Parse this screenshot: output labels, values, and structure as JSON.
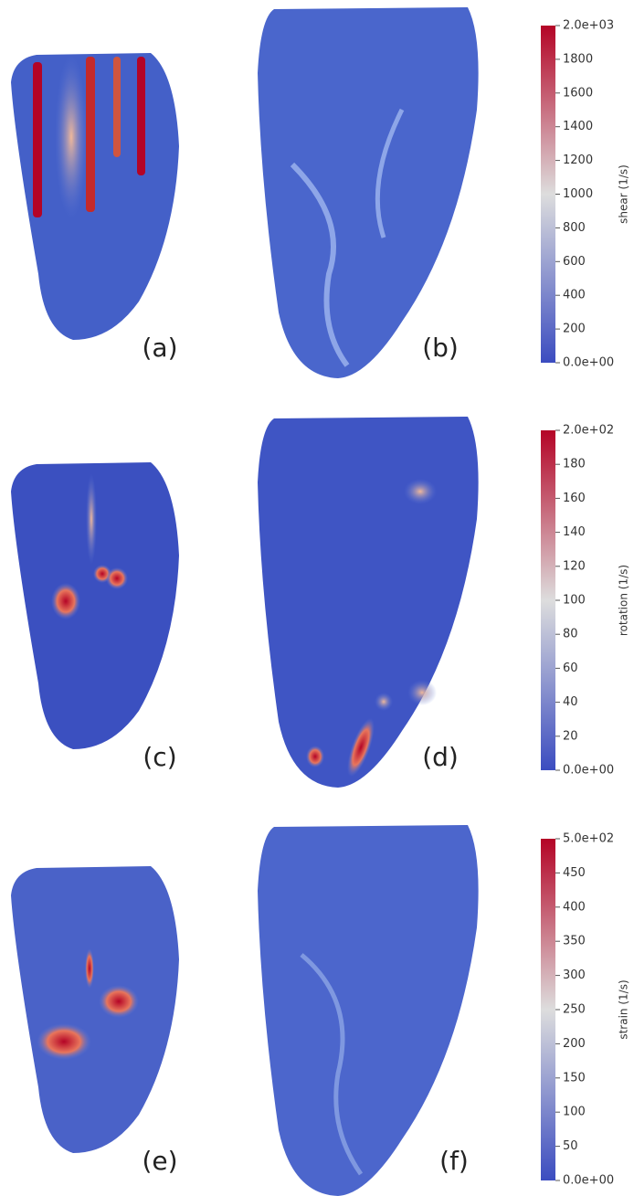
{
  "panels": [
    {
      "label": "(a)"
    },
    {
      "label": "(b)"
    },
    {
      "label": "(c)"
    },
    {
      "label": "(d)"
    },
    {
      "label": "(e)"
    },
    {
      "label": "(f)"
    }
  ],
  "colorbars": [
    {
      "title": "shear (1/s)",
      "lim": [
        0,
        2000
      ],
      "ticks": [
        {
          "value": 0,
          "label": "0.0e+00"
        },
        200,
        400,
        600,
        800,
        1000,
        1200,
        1400,
        1600,
        1800,
        {
          "value": 2000,
          "label": "2.0e+03"
        }
      ]
    },
    {
      "title": "rotation (1/s)",
      "lim": [
        0,
        200
      ],
      "ticks": [
        {
          "value": 0,
          "label": "0.0e+00"
        },
        20,
        40,
        60,
        80,
        100,
        120,
        140,
        160,
        180,
        {
          "value": 200,
          "label": "2.0e+02"
        }
      ]
    },
    {
      "title": "strain (1/s)",
      "lim": [
        0,
        500
      ],
      "ticks": [
        {
          "value": 0,
          "label": "0.0e+00"
        },
        50,
        100,
        150,
        200,
        250,
        300,
        350,
        400,
        450,
        {
          "value": 500,
          "label": "5.0e+02"
        }
      ]
    }
  ]
}
